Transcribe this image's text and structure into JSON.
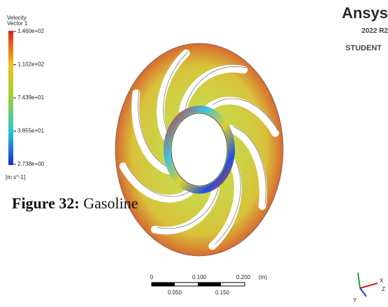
{
  "legend": {
    "title": "Velocity",
    "subtitle": "Vector 1",
    "ticks": [
      "1.460e+02",
      "1.102e+02",
      "7.439e+01",
      "3.855e+01",
      "2.738e+00"
    ],
    "unit": "[m s^-1]"
  },
  "brand": {
    "name": "Ansys",
    "version": "2022 R2",
    "edition": "STUDENT"
  },
  "caption": {
    "label": "Figure 32:",
    "text": "Gasoline"
  },
  "scale_bar": {
    "top": [
      "0",
      "0.100",
      "0.200",
      "(m)"
    ],
    "bottom": [
      "0.050",
      "0.150"
    ]
  },
  "axes": [
    "X",
    "Y",
    "Z"
  ]
}
